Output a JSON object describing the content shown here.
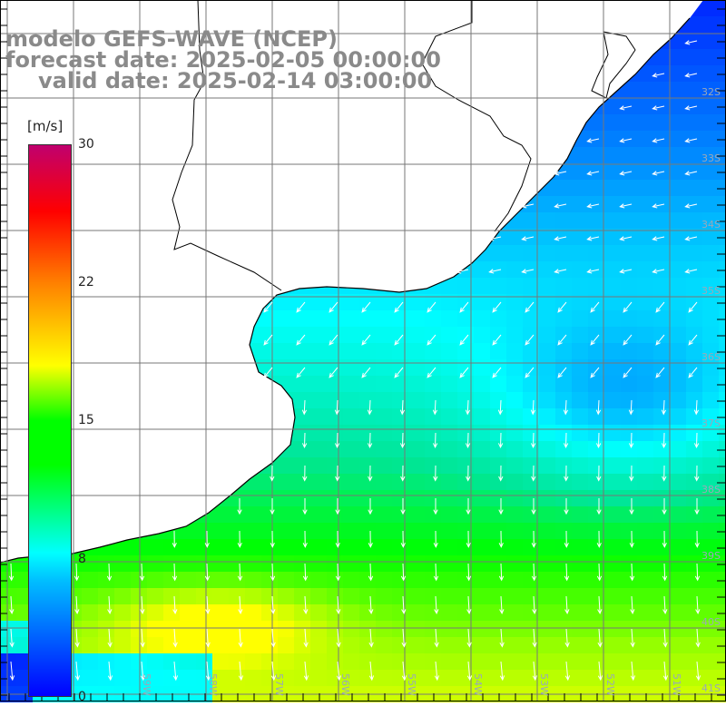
{
  "title": {
    "model": "modelo GEFS-WAVE (NCEP)",
    "forecast": "forecast date: 2025-02-05 00:00:00",
    "valid": "valid date: 2025-02-14 03:00:00"
  },
  "colorbar": {
    "unit": "[m/s]",
    "ticks": [
      "30",
      "22",
      "15",
      "8",
      "0"
    ],
    "tick_values": [
      30,
      22,
      15,
      8,
      0
    ],
    "range": [
      0,
      30
    ],
    "colors": [
      "#0000ff",
      "#00bfff",
      "#00ffff",
      "#00ff00",
      "#ffff00",
      "#ff8000",
      "#ff0000",
      "#c0006e"
    ]
  },
  "axes": {
    "lat_labels": [
      "32S",
      "33S",
      "34S",
      "35S",
      "36S",
      "37S",
      "38S",
      "39S",
      "40S",
      "41S"
    ],
    "lon_labels": [
      "59W",
      "58W",
      "57W",
      "56W",
      "55W",
      "54W",
      "53W",
      "52W",
      "51W"
    ]
  },
  "colors": {
    "land": "#ffffff",
    "coast": "#000000",
    "grid": "#777777",
    "arrows": "#ffffff"
  }
}
